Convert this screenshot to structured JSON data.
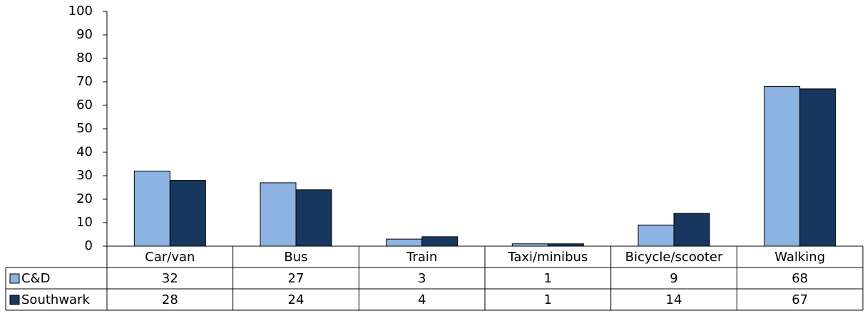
{
  "chart_data": {
    "type": "bar",
    "categories": [
      "Car/van",
      "Bus",
      "Train",
      "Taxi/minibus",
      "Bicycle/scooter",
      "Walking"
    ],
    "series": [
      {
        "name": "C&D",
        "color": "#8db3e2",
        "values": [
          32,
          27,
          3,
          1,
          9,
          68
        ]
      },
      {
        "name": "Southwark",
        "color": "#17375e",
        "values": [
          28,
          24,
          4,
          1,
          14,
          67
        ]
      }
    ],
    "ylim": [
      0,
      100
    ],
    "yticks": [
      0,
      10,
      20,
      30,
      40,
      50,
      60,
      70,
      80,
      90,
      100
    ],
    "grid": false
  }
}
